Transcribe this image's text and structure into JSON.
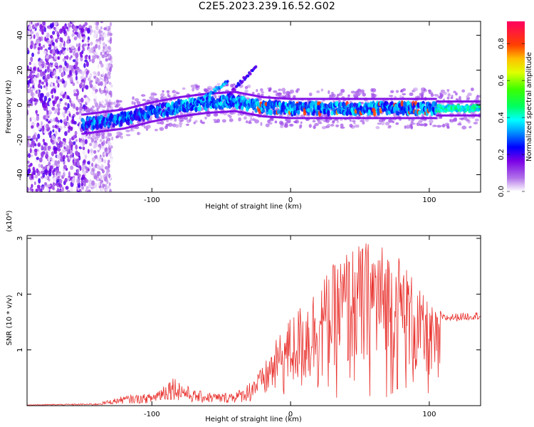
{
  "title": "C2E5.2023.239.16.52.G02",
  "chart_data": [
    {
      "type": "heatmap",
      "xlabel": "Height of straight line (km)",
      "ylabel": "Frequency (Hz)",
      "xlim": [
        -190,
        137
      ],
      "ylim": [
        -50,
        48
      ],
      "x_ticks": [
        -100,
        0,
        100
      ],
      "y_ticks": [
        -40,
        -20,
        0,
        20,
        40
      ],
      "colorbar": {
        "label": "Normalized spectral amplitude",
        "range": [
          0,
          0.92
        ],
        "ticks": [
          0.0,
          0.2,
          0.4,
          0.6,
          0.8
        ]
      },
      "features": {
        "noise_band_x": [
          -190,
          -135
        ],
        "main_track": [
          [
            -150,
            -11
          ],
          [
            -120,
            -8
          ],
          [
            -100,
            -4
          ],
          [
            -80,
            -1
          ],
          [
            -60,
            1
          ],
          [
            -40,
            2
          ],
          [
            -20,
            -1
          ],
          [
            0,
            -2
          ],
          [
            40,
            -2
          ],
          [
            80,
            -2
          ],
          [
            100,
            -2
          ],
          [
            137,
            -2
          ]
        ],
        "secondary_track": [
          [
            -75,
            -2
          ],
          [
            -55,
            8
          ],
          [
            -45,
            14
          ]
        ],
        "tertiary_track": [
          [
            -45,
            5
          ],
          [
            -35,
            14
          ],
          [
            -25,
            22
          ]
        ]
      }
    },
    {
      "type": "line",
      "xlabel": "Height of straight line (km)",
      "ylabel": "SNR (10 * v/v)",
      "yscale_label": "(x10⁴)",
      "xlim": [
        -190,
        137
      ],
      "ylim": [
        0,
        3.05
      ],
      "x_ticks": [
        -100,
        0,
        100
      ],
      "y_ticks": [
        1,
        2,
        3
      ],
      "line_color": "#e8312d",
      "envelope": [
        [
          -190,
          0.02
        ],
        [
          -140,
          0.04
        ],
        [
          -120,
          0.18
        ],
        [
          -100,
          0.22
        ],
        [
          -85,
          0.55
        ],
        [
          -70,
          0.28
        ],
        [
          -50,
          0.22
        ],
        [
          -35,
          0.3
        ],
        [
          -20,
          0.7
        ],
        [
          -10,
          1.2
        ],
        [
          0,
          1.6
        ],
        [
          20,
          2.2
        ],
        [
          40,
          2.8
        ],
        [
          60,
          3.0
        ],
        [
          80,
          2.7
        ],
        [
          95,
          2.0
        ],
        [
          110,
          1.55
        ],
        [
          137,
          1.6
        ]
      ]
    }
  ]
}
